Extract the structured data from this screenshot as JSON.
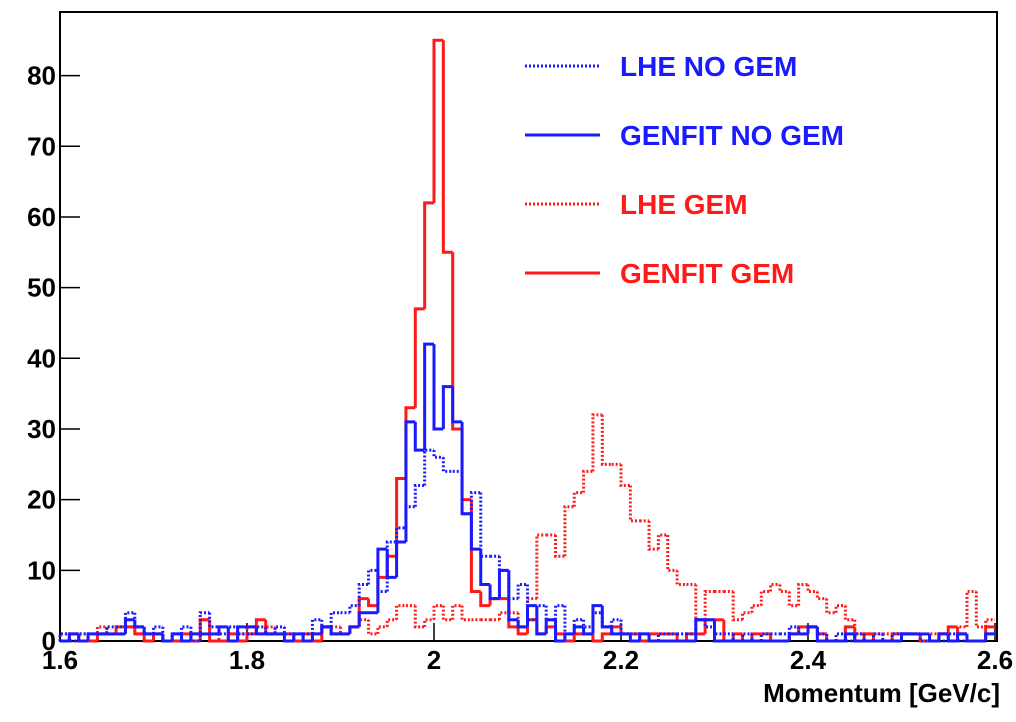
{
  "chart_data": {
    "type": "histogram",
    "x_label": "Momentum [GeV/c]",
    "xlim": [
      1.6,
      2.6
    ],
    "ylim": [
      0,
      89
    ],
    "xticks": [
      1.6,
      1.8,
      2,
      2.2,
      2.4,
      2.6
    ],
    "yticks": [
      0,
      10,
      20,
      30,
      40,
      50,
      60,
      70,
      80
    ],
    "legend": "top-right",
    "bins": [
      1.6,
      1.61,
      1.62,
      1.63,
      1.64,
      1.65,
      1.66,
      1.67,
      1.68,
      1.69,
      1.7,
      1.71,
      1.72,
      1.73,
      1.74,
      1.75,
      1.76,
      1.77,
      1.78,
      1.79,
      1.8,
      1.81,
      1.82,
      1.83,
      1.84,
      1.85,
      1.86,
      1.87,
      1.88,
      1.89,
      1.9,
      1.91,
      1.92,
      1.93,
      1.94,
      1.95,
      1.96,
      1.97,
      1.98,
      1.99,
      2,
      2.01,
      2.02,
      2.03,
      2.04,
      2.05,
      2.06,
      2.07,
      2.08,
      2.09,
      2.1,
      2.11,
      2.12,
      2.13,
      2.14,
      2.15,
      2.16,
      2.17,
      2.18,
      2.19,
      2.2,
      2.21,
      2.22,
      2.23,
      2.24,
      2.25,
      2.26,
      2.27,
      2.28,
      2.29,
      2.3,
      2.31,
      2.32,
      2.33,
      2.34,
      2.35,
      2.36,
      2.37,
      2.38,
      2.39,
      2.4,
      2.41,
      2.42,
      2.43,
      2.44,
      2.45,
      2.46,
      2.47,
      2.48,
      2.49,
      2.5,
      2.51,
      2.52,
      2.53,
      2.54,
      2.55,
      2.56,
      2.57,
      2.58,
      2.59,
      2.6
    ],
    "series": [
      {
        "name": "LHE NO GEM",
        "color": "#1a1aff",
        "line_style": "dotted",
        "values": [
          1,
          0,
          1,
          1,
          1,
          2,
          2,
          4,
          2,
          1,
          2,
          0,
          1,
          2,
          0,
          4,
          2,
          1,
          2,
          1,
          1,
          2,
          1,
          2,
          1,
          1,
          1,
          3,
          2,
          4,
          4,
          5,
          8,
          10,
          7,
          14,
          16,
          19,
          22,
          27,
          26,
          24,
          24,
          18,
          21,
          12,
          12,
          10,
          6,
          8,
          3,
          5,
          3,
          5,
          1,
          3,
          2,
          4,
          2,
          3,
          1,
          1,
          1,
          0,
          1,
          1,
          1,
          1,
          3,
          2,
          1,
          1,
          0,
          1,
          0,
          1,
          1,
          1,
          2,
          1,
          2,
          1,
          0,
          1,
          0,
          1,
          0,
          1,
          0,
          1,
          1,
          1,
          0,
          0,
          0,
          1,
          0,
          0,
          0,
          1
        ]
      },
      {
        "name": "GENFIT NO GEM",
        "color": "#1a1aff",
        "line_style": "solid",
        "values": [
          0,
          1,
          0,
          1,
          1,
          1,
          1,
          3,
          2,
          1,
          1,
          0,
          1,
          0,
          1,
          1,
          1,
          2,
          0,
          2,
          2,
          1,
          1,
          1,
          0,
          1,
          0,
          1,
          2,
          1,
          1,
          2,
          4,
          4,
          13,
          9,
          14,
          31,
          27,
          42,
          30,
          36,
          31,
          18,
          13,
          8,
          6,
          10,
          3,
          2,
          5,
          1,
          3,
          0,
          1,
          2,
          1,
          5,
          2,
          1,
          1,
          0,
          1,
          0,
          0,
          0,
          0,
          0,
          3,
          3,
          0,
          0,
          0,
          0,
          0,
          0,
          0,
          0,
          1,
          1,
          2,
          0,
          0,
          0,
          1,
          0,
          0,
          0,
          0,
          0,
          1,
          1,
          1,
          0,
          1,
          0,
          1,
          0,
          0,
          1
        ]
      },
      {
        "name": "LHE GEM",
        "color": "#ff1a1a",
        "line_style": "dotted",
        "values": [
          1,
          0,
          1,
          0,
          2,
          1,
          1,
          2,
          1,
          0,
          1,
          0,
          0,
          0,
          1,
          3,
          1,
          0,
          1,
          1,
          2,
          1,
          2,
          1,
          1,
          0,
          0,
          1,
          2,
          2,
          1,
          2,
          3,
          1,
          2,
          3,
          5,
          5,
          2,
          3,
          5,
          3,
          5,
          3,
          3,
          3,
          3,
          4,
          4,
          2,
          6,
          15,
          15,
          12,
          19,
          21,
          24,
          32,
          25,
          25,
          22,
          17,
          17,
          13,
          15,
          10,
          8,
          8,
          3,
          7,
          7,
          7,
          3,
          4,
          5,
          7,
          8,
          7,
          5,
          8,
          7,
          6,
          4,
          5,
          3,
          1,
          1,
          1,
          1,
          1,
          1,
          1,
          0,
          1,
          1,
          0,
          2,
          7,
          2,
          3
        ]
      },
      {
        "name": "GENFIT GEM",
        "color": "#ff1a1a",
        "line_style": "solid",
        "values": [
          0,
          1,
          0,
          0,
          1,
          1,
          2,
          2,
          1,
          0,
          1,
          0,
          0,
          1,
          0,
          3,
          0,
          0,
          1,
          0,
          1,
          3,
          1,
          1,
          1,
          0,
          1,
          0,
          2,
          1,
          1,
          2,
          6,
          5,
          9,
          12,
          23,
          33,
          47,
          62,
          85,
          55,
          30,
          20,
          7,
          5,
          6,
          6,
          2,
          1,
          3,
          1,
          2,
          1,
          0,
          1,
          1,
          0,
          1,
          2,
          1,
          1,
          0,
          1,
          1,
          1,
          0,
          1,
          1,
          3,
          3,
          0,
          1,
          0,
          1,
          1,
          0,
          0,
          1,
          2,
          2,
          1,
          0,
          0,
          2,
          0,
          1,
          0,
          0,
          1,
          1,
          1,
          0,
          0,
          1,
          2,
          1,
          0,
          0,
          2
        ]
      }
    ]
  }
}
